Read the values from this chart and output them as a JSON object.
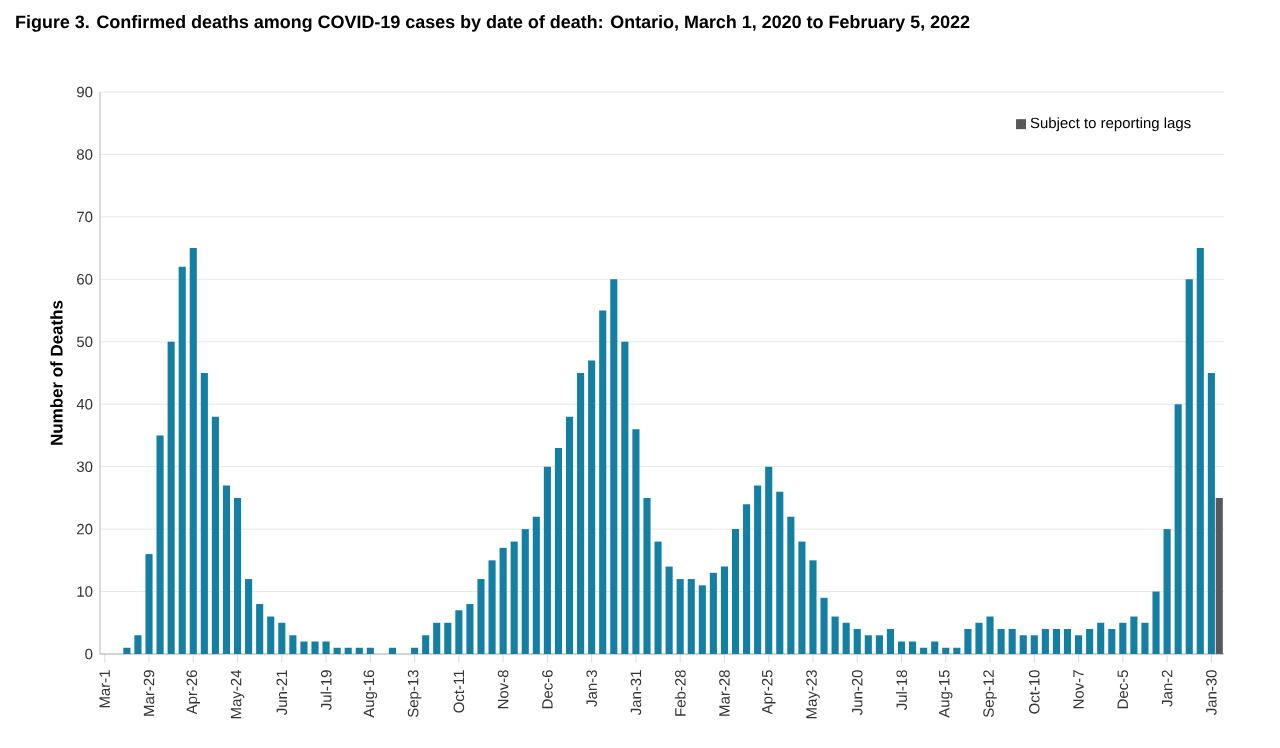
{
  "chart_data": {
    "type": "bar",
    "title": "Figure 3. Confirmed deaths among COVID-19 cases by date of death: Ontario, March 1, 2020 to February 5, 2022",
    "ylabel": "Number of Deaths",
    "xlim": [
      "2020-02-27",
      "2022-02-07"
    ],
    "ylim": [
      0,
      90
    ],
    "yticks": [
      0,
      10,
      20,
      30,
      40,
      50,
      60,
      70,
      80,
      90
    ],
    "xticks": [
      {
        "value": "2020-03-01",
        "label": "Mar-1"
      },
      {
        "value": "2020-03-29",
        "label": "Mar-29"
      },
      {
        "value": "2020-04-26",
        "label": "Apr-26"
      },
      {
        "value": "2020-05-24",
        "label": "May-24"
      },
      {
        "value": "2020-06-21",
        "label": "Jun-21"
      },
      {
        "value": "2020-07-19",
        "label": "Jul-19"
      },
      {
        "value": "2020-08-16",
        "label": "Aug-16"
      },
      {
        "value": "2020-09-13",
        "label": "Sep-13"
      },
      {
        "value": "2020-10-11",
        "label": "Oct-11"
      },
      {
        "value": "2020-11-08",
        "label": "Nov-8"
      },
      {
        "value": "2020-12-06",
        "label": "Dec-6"
      },
      {
        "value": "2021-01-03",
        "label": "Jan-3"
      },
      {
        "value": "2021-01-31",
        "label": "Jan-31"
      },
      {
        "value": "2021-02-28",
        "label": "Feb-28"
      },
      {
        "value": "2021-03-28",
        "label": "Mar-28"
      },
      {
        "value": "2021-04-25",
        "label": "Apr-25"
      },
      {
        "value": "2021-05-23",
        "label": "May-23"
      },
      {
        "value": "2021-06-20",
        "label": "Jun-20"
      },
      {
        "value": "2021-07-18",
        "label": "Jul-18"
      },
      {
        "value": "2021-08-15",
        "label": "Aug-15"
      },
      {
        "value": "2021-09-12",
        "label": "Sep-12"
      },
      {
        "value": "2021-10-10",
        "label": "Oct-10"
      },
      {
        "value": "2021-11-07",
        "label": "Nov-7"
      },
      {
        "value": "2021-12-05",
        "label": "Dec-5"
      },
      {
        "value": "2022-01-02",
        "label": "Jan-2"
      },
      {
        "value": "2022-01-30",
        "label": "Jan-30"
      }
    ],
    "grid": "y",
    "legend": "top right",
    "series": [
      {
        "color": "#137fa2",
        "x": [
          "2020-03-01",
          "2020-03-08",
          "2020-03-15",
          "2020-03-22",
          "2020-03-29",
          "2020-04-05",
          "2020-04-12",
          "2020-04-19",
          "2020-04-26",
          "2020-05-03",
          "2020-05-10",
          "2020-05-17",
          "2020-05-24",
          "2020-05-31",
          "2020-06-07",
          "2020-06-14",
          "2020-06-21",
          "2020-06-28",
          "2020-07-05",
          "2020-07-12",
          "2020-07-19",
          "2020-07-26",
          "2020-08-02",
          "2020-08-09",
          "2020-08-16",
          "2020-08-23",
          "2020-08-30",
          "2020-09-06",
          "2020-09-13",
          "2020-09-20",
          "2020-09-27",
          "2020-10-04",
          "2020-10-11",
          "2020-10-18",
          "2020-10-25",
          "2020-11-01",
          "2020-11-08",
          "2020-11-15",
          "2020-11-22",
          "2020-11-29",
          "2020-12-06",
          "2020-12-13",
          "2020-12-20",
          "2020-12-27",
          "2021-01-03",
          "2021-01-10",
          "2021-01-17",
          "2021-01-24",
          "2021-01-31",
          "2021-02-07",
          "2021-02-14",
          "2021-02-21",
          "2021-02-28",
          "2021-03-07",
          "2021-03-14",
          "2021-03-21",
          "2021-03-28",
          "2021-04-04",
          "2021-04-11",
          "2021-04-18",
          "2021-04-25",
          "2021-05-02",
          "2021-05-09",
          "2021-05-16",
          "2021-05-23",
          "2021-05-30",
          "2021-06-06",
          "2021-06-13",
          "2021-06-20",
          "2021-06-27",
          "2021-07-04",
          "2021-07-11",
          "2021-07-18",
          "2021-07-25",
          "2021-08-01",
          "2021-08-08",
          "2021-08-15",
          "2021-08-22",
          "2021-08-29",
          "2021-09-05",
          "2021-09-12",
          "2021-09-19",
          "2021-09-26",
          "2021-10-03",
          "2021-10-10",
          "2021-10-17",
          "2021-10-24",
          "2021-10-31",
          "2021-11-07",
          "2021-11-14",
          "2021-11-21",
          "2021-11-28",
          "2021-12-05",
          "2021-12-12",
          "2021-12-19",
          "2021-12-26",
          "2022-01-02",
          "2022-01-09",
          "2022-01-16",
          "2022-01-23",
          "2022-01-30"
        ],
        "values": [
          0,
          0,
          1,
          3,
          16,
          35,
          50,
          62,
          65,
          45,
          38,
          27,
          25,
          12,
          8,
          6,
          5,
          3,
          2,
          2,
          2,
          1,
          1,
          1,
          1,
          0,
          1,
          0,
          1,
          3,
          5,
          5,
          7,
          8,
          12,
          15,
          17,
          18,
          20,
          22,
          30,
          33,
          38,
          45,
          47,
          55,
          60,
          50,
          36,
          25,
          18,
          14,
          12,
          12,
          11,
          13,
          14,
          20,
          24,
          27,
          30,
          26,
          22,
          18,
          15,
          9,
          6,
          5,
          4,
          3,
          3,
          4,
          2,
          2,
          1,
          2,
          1,
          1,
          4,
          5,
          6,
          4,
          4,
          3,
          3,
          4,
          4,
          4,
          3,
          4,
          5,
          4,
          5,
          6,
          5,
          10,
          20,
          40,
          60,
          65,
          45
        ]
      },
      {
        "name": "Subject to reporting lags",
        "color": "#595959",
        "x": [
          "2022-02-04"
        ],
        "values": [
          25
        ]
      }
    ]
  }
}
